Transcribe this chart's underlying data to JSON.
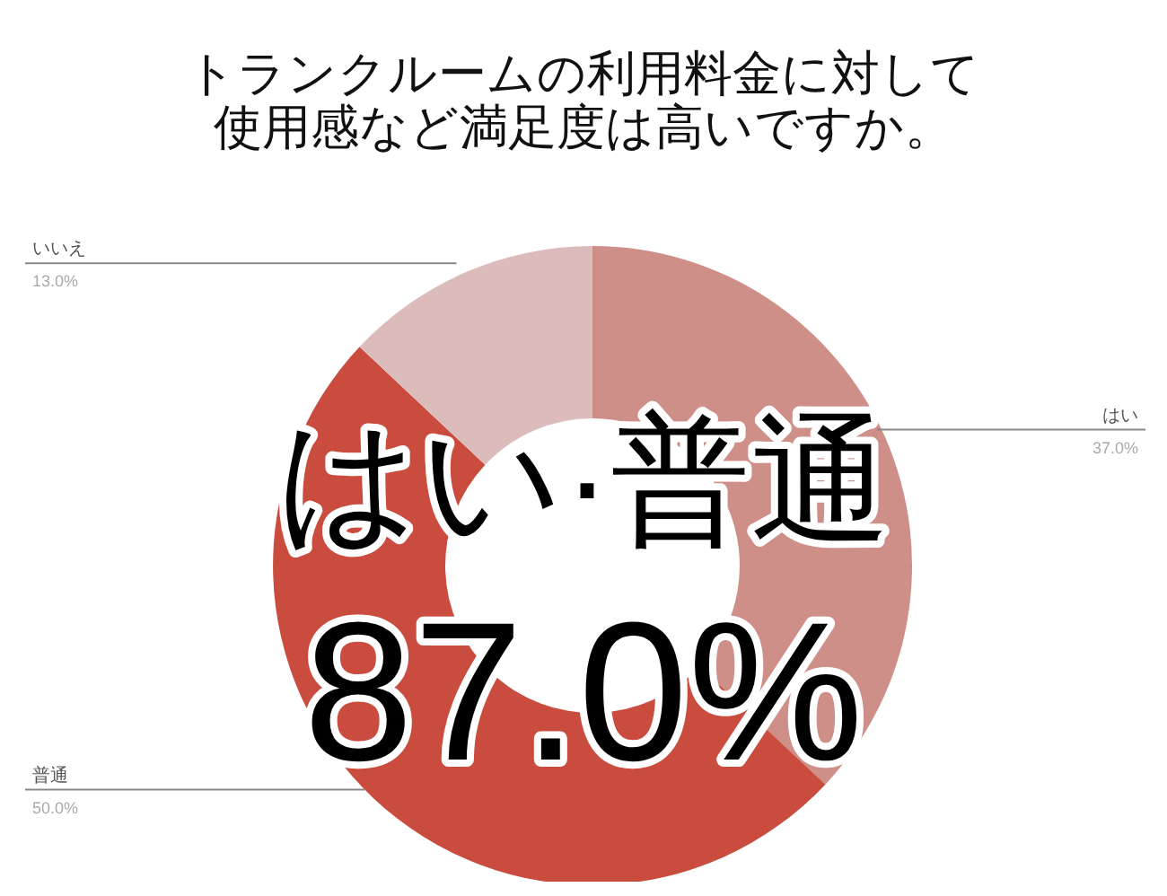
{
  "chart_data": {
    "type": "donut",
    "title": "トランクルームの利用料金に対して使用感など満足度は高いですか。",
    "categories": [
      "はい",
      "普通",
      "いいえ"
    ],
    "values": [
      37.0,
      50.0,
      13.0
    ],
    "value_labels": [
      "37.0%",
      "50.0%",
      "13.0%"
    ],
    "colors": [
      "#cf8f89",
      "#c94c3e",
      "#dcbcbb"
    ],
    "annotations": [
      "はい·普通",
      "87.0%"
    ]
  }
}
